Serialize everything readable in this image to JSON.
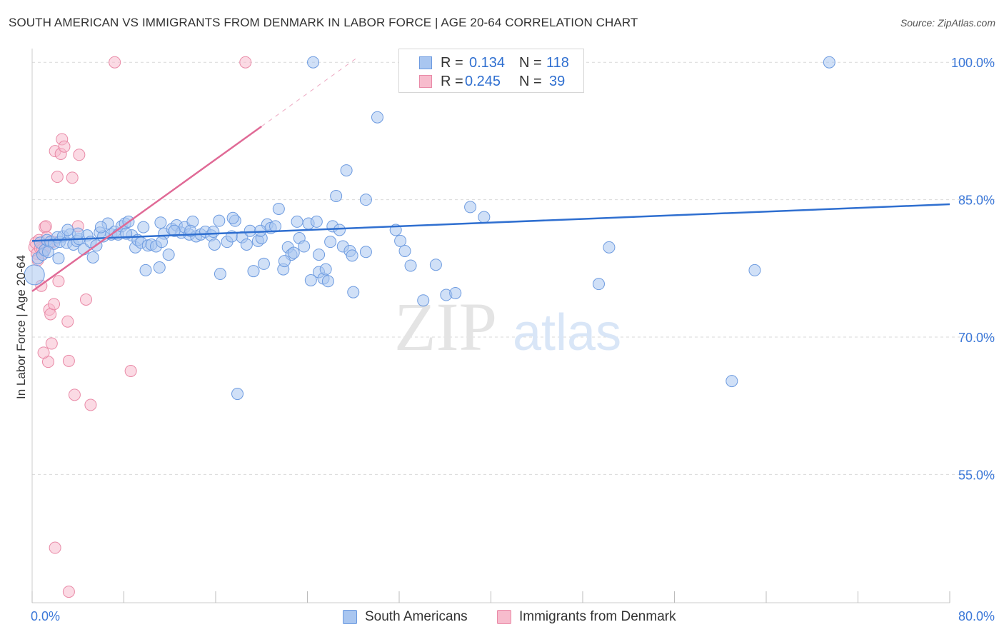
{
  "title": "SOUTH AMERICAN VS IMMIGRANTS FROM DENMARK IN LABOR FORCE | AGE 20-64 CORRELATION CHART",
  "source": "Source: ZipAtlas.com",
  "watermark": {
    "zip": "ZIP",
    "atlas": "atlas"
  },
  "legend": {
    "r_label": "R =",
    "n_label": "N =",
    "rows": [
      {
        "r": "0.134",
        "n": "118",
        "color": "#a9c6f0",
        "border": "#6d9be0"
      },
      {
        "r": "0.245",
        "n": "39",
        "color": "#f7bccd",
        "border": "#e98aa7"
      }
    ]
  },
  "colors": {
    "blue_fill": "#a9c6f0",
    "blue_stroke": "#6d9be0",
    "blue_line": "#2f6fd0",
    "pink_fill": "#f7bccd",
    "pink_stroke": "#e98aa7",
    "pink_line": "#e06a96",
    "grid": "#d9d9d9",
    "tick_label": "#3c78d8"
  },
  "chart_data": {
    "type": "scatter",
    "title": "SOUTH AMERICAN VS IMMIGRANTS FROM DENMARK IN LABOR FORCE | AGE 20-64 CORRELATION CHART",
    "xlabel": "",
    "ylabel": "In Labor Force | Age 20-64",
    "xlim": [
      0,
      80
    ],
    "ylim": [
      41,
      101.5
    ],
    "x_tick_labels": [
      "0.0%",
      "80.0%"
    ],
    "y_ticks": [
      55,
      70,
      85,
      100
    ],
    "y_tick_labels": [
      "55.0%",
      "70.0%",
      "85.0%",
      "100.0%"
    ],
    "grid": true,
    "legend_position": "top-center",
    "series": [
      {
        "name": "South Americans",
        "r": 0.134,
        "n": 118,
        "trend": {
          "x0": 0,
          "y0": 80.5,
          "x1": 80,
          "y1": 84.5
        },
        "points": [
          [
            0.2,
            76.8
          ],
          [
            0.5,
            78.6
          ],
          [
            0.7,
            80.3
          ],
          [
            0.9,
            79.0
          ],
          [
            1.1,
            79.5
          ],
          [
            1.3,
            80.6
          ],
          [
            1.6,
            80.4
          ],
          [
            1.9,
            80.2
          ],
          [
            2.2,
            80.9
          ],
          [
            2.4,
            80.4
          ],
          [
            2.7,
            81.0
          ],
          [
            3.0,
            80.3
          ],
          [
            3.3,
            81.2
          ],
          [
            3.6,
            80.1
          ],
          [
            3.9,
            80.5
          ],
          [
            4.1,
            80.7
          ],
          [
            4.5,
            79.6
          ],
          [
            4.8,
            81.1
          ],
          [
            5.1,
            80.4
          ],
          [
            5.3,
            78.7
          ],
          [
            5.6,
            80.0
          ],
          [
            5.9,
            81.4
          ],
          [
            6.2,
            81.0
          ],
          [
            6.6,
            82.4
          ],
          [
            6.9,
            81.2
          ],
          [
            7.2,
            81.5
          ],
          [
            7.5,
            81.2
          ],
          [
            7.8,
            82.1
          ],
          [
            8.1,
            82.4
          ],
          [
            8.4,
            82.6
          ],
          [
            8.7,
            81.1
          ],
          [
            9.0,
            79.8
          ],
          [
            9.2,
            80.6
          ],
          [
            9.5,
            80.3
          ],
          [
            9.7,
            82.0
          ],
          [
            9.9,
            77.3
          ],
          [
            10.1,
            80.0
          ],
          [
            10.4,
            80.1
          ],
          [
            10.8,
            79.9
          ],
          [
            11.1,
            77.6
          ],
          [
            11.2,
            82.5
          ],
          [
            11.5,
            81.3
          ],
          [
            11.9,
            79.0
          ],
          [
            12.2,
            81.8
          ],
          [
            12.6,
            82.2
          ],
          [
            13.0,
            81.4
          ],
          [
            13.3,
            82.0
          ],
          [
            13.7,
            81.2
          ],
          [
            14.0,
            82.6
          ],
          [
            14.3,
            81.0
          ],
          [
            14.7,
            81.2
          ],
          [
            15.1,
            81.5
          ],
          [
            15.6,
            81.1
          ],
          [
            15.9,
            80.1
          ],
          [
            16.3,
            82.7
          ],
          [
            16.4,
            76.9
          ],
          [
            17.0,
            80.4
          ],
          [
            17.4,
            81.0
          ],
          [
            17.7,
            82.7
          ],
          [
            17.9,
            63.8
          ],
          [
            18.3,
            80.9
          ],
          [
            18.7,
            80.1
          ],
          [
            19.0,
            81.6
          ],
          [
            19.3,
            77.2
          ],
          [
            19.7,
            80.5
          ],
          [
            20.2,
            78.0
          ],
          [
            20.5,
            82.3
          ],
          [
            20.8,
            81.9
          ],
          [
            21.2,
            82.1
          ],
          [
            21.5,
            84.0
          ],
          [
            21.9,
            77.4
          ],
          [
            22.3,
            79.8
          ],
          [
            22.6,
            79.0
          ],
          [
            22.8,
            79.2
          ],
          [
            23.1,
            82.6
          ],
          [
            23.3,
            80.8
          ],
          [
            23.7,
            79.9
          ],
          [
            24.1,
            82.4
          ],
          [
            24.3,
            76.2
          ],
          [
            24.8,
            82.6
          ],
          [
            25.0,
            77.1
          ],
          [
            25.4,
            76.4
          ],
          [
            25.6,
            77.4
          ],
          [
            25.8,
            76.1
          ],
          [
            26.2,
            82.1
          ],
          [
            26.5,
            85.4
          ],
          [
            26.8,
            81.7
          ],
          [
            27.1,
            79.9
          ],
          [
            27.4,
            88.2
          ],
          [
            27.7,
            79.4
          ],
          [
            28.0,
            74.9
          ],
          [
            29.1,
            85.0
          ],
          [
            29.1,
            79.3
          ],
          [
            32.1,
            80.5
          ],
          [
            32.5,
            79.4
          ],
          [
            33.0,
            77.8
          ],
          [
            34.1,
            74.0
          ],
          [
            34.1,
            97.6
          ],
          [
            35.2,
            77.9
          ],
          [
            36.1,
            74.6
          ],
          [
            36.9,
            74.8
          ],
          [
            38.2,
            84.2
          ],
          [
            39.4,
            83.1
          ],
          [
            49.4,
            75.8
          ],
          [
            50.3,
            79.8
          ],
          [
            61.0,
            65.2
          ],
          [
            63.0,
            77.3
          ],
          [
            69.5,
            100.0
          ],
          [
            17.5,
            83.0
          ],
          [
            31.7,
            81.7
          ],
          [
            24.5,
            100.0
          ],
          [
            12.4,
            81.6
          ],
          [
            15.8,
            81.5
          ],
          [
            20.0,
            80.8
          ],
          [
            30.1,
            94.0
          ],
          [
            4.0,
            81.3
          ],
          [
            6.0,
            82.0
          ],
          [
            8.2,
            81.3
          ],
          [
            13.8,
            81.6
          ],
          [
            19.9,
            81.6
          ],
          [
            2.3,
            78.6
          ],
          [
            1.4,
            79.3
          ],
          [
            3.1,
            81.7
          ],
          [
            25.0,
            79.0
          ],
          [
            22.0,
            78.3
          ],
          [
            26.0,
            80.4
          ],
          [
            27.9,
            78.9
          ],
          [
            11.3,
            80.4
          ]
        ]
      },
      {
        "name": "Immigrants from Denmark",
        "r": 0.245,
        "n": 39,
        "trend": {
          "x0": 0,
          "y0": 75.0,
          "x1": 20,
          "y1": 93.0
        },
        "points": [
          [
            0.2,
            79.8
          ],
          [
            0.3,
            80.3
          ],
          [
            0.4,
            79.1
          ],
          [
            0.5,
            78.4
          ],
          [
            0.6,
            80.6
          ],
          [
            0.7,
            79.7
          ],
          [
            0.8,
            75.6
          ],
          [
            0.9,
            79.6
          ],
          [
            1.0,
            79.2
          ],
          [
            1.1,
            82.0
          ],
          [
            1.2,
            82.1
          ],
          [
            1.3,
            80.9
          ],
          [
            1.4,
            67.3
          ],
          [
            1.5,
            73.0
          ],
          [
            1.6,
            72.5
          ],
          [
            1.7,
            69.3
          ],
          [
            1.8,
            80.4
          ],
          [
            1.9,
            73.6
          ],
          [
            2.0,
            90.3
          ],
          [
            2.2,
            87.5
          ],
          [
            2.3,
            76.1
          ],
          [
            2.5,
            90.0
          ],
          [
            2.6,
            91.6
          ],
          [
            2.8,
            90.8
          ],
          [
            3.1,
            71.7
          ],
          [
            3.2,
            67.4
          ],
          [
            3.5,
            87.4
          ],
          [
            3.7,
            63.7
          ],
          [
            4.0,
            82.1
          ],
          [
            4.1,
            89.9
          ],
          [
            4.7,
            74.1
          ],
          [
            5.1,
            62.6
          ],
          [
            7.2,
            100.0
          ],
          [
            8.6,
            66.3
          ],
          [
            18.6,
            100.0
          ],
          [
            2.0,
            47.0
          ],
          [
            3.2,
            42.2
          ],
          [
            1.0,
            68.3
          ],
          [
            1.3,
            80.0
          ]
        ]
      }
    ]
  }
}
